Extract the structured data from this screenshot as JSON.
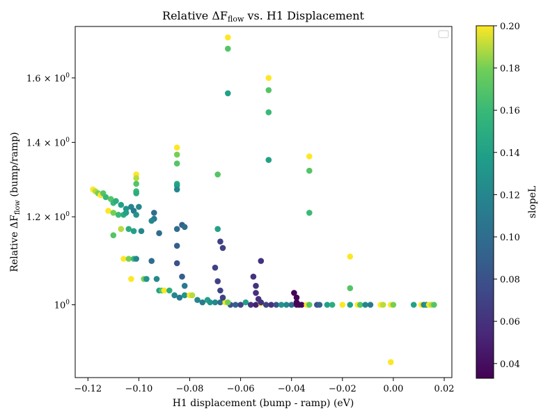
{
  "chart_data": {
    "type": "scatter",
    "title_main": "Relative ΔF",
    "title_sub": "flow",
    "title_rest": " vs. H1 Displacement",
    "xlabel": "H1 displacement (bump - ramp) (eV)",
    "ylabel_main": "Relative ΔF",
    "ylabel_sub": "flow",
    "ylabel_rest": " (bump/ramp)",
    "y_scale": "log",
    "xlim": [
      -0.125,
      0.023
    ],
    "ylim": [
      0.86,
      1.78
    ],
    "x_ticks": [
      {
        "value": -0.12,
        "label": "−0.12"
      },
      {
        "value": -0.1,
        "label": "−0.10"
      },
      {
        "value": -0.08,
        "label": "−0.08"
      },
      {
        "value": -0.06,
        "label": "−0.06"
      },
      {
        "value": -0.04,
        "label": "−0.04"
      },
      {
        "value": -0.02,
        "label": "−0.02"
      },
      {
        "value": 0.0,
        "label": "0.00"
      },
      {
        "value": 0.02,
        "label": "0.02"
      }
    ],
    "y_ticks": [
      {
        "value": 1.0,
        "base": "10",
        "exp": "0",
        "coef": ""
      },
      {
        "value": 1.2,
        "base": "10",
        "exp": "0",
        "coef": "1.2 × "
      },
      {
        "value": 1.4,
        "base": "10",
        "exp": "0",
        "coef": "1.4 × "
      },
      {
        "value": 1.6,
        "base": "10",
        "exp": "0",
        "coef": "1.6 × "
      }
    ],
    "colorbar": {
      "label": "slopeL",
      "range": [
        0.033,
        0.2
      ],
      "ticks": [
        {
          "value": 0.04,
          "label": "0.04"
        },
        {
          "value": 0.06,
          "label": "0.06"
        },
        {
          "value": 0.08,
          "label": "0.08"
        },
        {
          "value": 0.1,
          "label": "0.10"
        },
        {
          "value": 0.12,
          "label": "0.12"
        },
        {
          "value": 0.14,
          "label": "0.14"
        },
        {
          "value": 0.16,
          "label": "0.16"
        },
        {
          "value": 0.18,
          "label": "0.18"
        },
        {
          "value": 0.2,
          "label": "0.20"
        }
      ],
      "colormap": "viridis"
    },
    "legend": "top-right",
    "points": [
      {
        "x": -0.118,
        "y": 1.27,
        "c": 0.2
      },
      {
        "x": -0.117,
        "y": 1.265,
        "c": 0.19
      },
      {
        "x": -0.116,
        "y": 1.26,
        "c": 0.18
      },
      {
        "x": -0.115,
        "y": 1.255,
        "c": 0.2
      },
      {
        "x": -0.114,
        "y": 1.26,
        "c": 0.17
      },
      {
        "x": -0.113,
        "y": 1.25,
        "c": 0.16
      },
      {
        "x": -0.111,
        "y": 1.245,
        "c": 0.17
      },
      {
        "x": -0.11,
        "y": 1.235,
        "c": 0.16
      },
      {
        "x": -0.109,
        "y": 1.24,
        "c": 0.15
      },
      {
        "x": -0.107,
        "y": 1.23,
        "c": 0.14
      },
      {
        "x": -0.105,
        "y": 1.22,
        "c": 0.13
      },
      {
        "x": -0.103,
        "y": 1.225,
        "c": 0.12
      },
      {
        "x": -0.102,
        "y": 1.215,
        "c": 0.11
      },
      {
        "x": -0.101,
        "y": 1.205,
        "c": 0.13
      },
      {
        "x": -0.1,
        "y": 1.225,
        "c": 0.12
      },
      {
        "x": -0.112,
        "y": 1.215,
        "c": 0.2
      },
      {
        "x": -0.11,
        "y": 1.21,
        "c": 0.18
      },
      {
        "x": -0.108,
        "y": 1.205,
        "c": 0.16
      },
      {
        "x": -0.106,
        "y": 1.205,
        "c": 0.15
      },
      {
        "x": -0.105,
        "y": 1.21,
        "c": 0.14
      },
      {
        "x": -0.101,
        "y": 1.31,
        "c": 0.2
      },
      {
        "x": -0.101,
        "y": 1.3,
        "c": 0.19
      },
      {
        "x": -0.101,
        "y": 1.285,
        "c": 0.17
      },
      {
        "x": -0.101,
        "y": 1.265,
        "c": 0.16
      },
      {
        "x": -0.101,
        "y": 1.26,
        "c": 0.15
      },
      {
        "x": -0.107,
        "y": 1.17,
        "c": 0.19
      },
      {
        "x": -0.11,
        "y": 1.155,
        "c": 0.17
      },
      {
        "x": -0.104,
        "y": 1.17,
        "c": 0.15
      },
      {
        "x": -0.102,
        "y": 1.165,
        "c": 0.14
      },
      {
        "x": -0.099,
        "y": 1.165,
        "c": 0.12
      },
      {
        "x": -0.094,
        "y": 1.21,
        "c": 0.1
      },
      {
        "x": -0.094,
        "y": 1.195,
        "c": 0.11
      },
      {
        "x": -0.095,
        "y": 1.19,
        "c": 0.12
      },
      {
        "x": -0.092,
        "y": 1.16,
        "c": 0.1
      },
      {
        "x": -0.106,
        "y": 1.1,
        "c": 0.2
      },
      {
        "x": -0.104,
        "y": 1.1,
        "c": 0.18
      },
      {
        "x": -0.102,
        "y": 1.1,
        "c": 0.16
      },
      {
        "x": -0.101,
        "y": 1.1,
        "c": 0.12
      },
      {
        "x": -0.095,
        "y": 1.095,
        "c": 0.1
      },
      {
        "x": -0.103,
        "y": 1.055,
        "c": 0.2
      },
      {
        "x": -0.098,
        "y": 1.055,
        "c": 0.18
      },
      {
        "x": -0.097,
        "y": 1.055,
        "c": 0.13
      },
      {
        "x": -0.093,
        "y": 1.055,
        "c": 0.12
      },
      {
        "x": -0.092,
        "y": 1.03,
        "c": 0.14
      },
      {
        "x": -0.091,
        "y": 1.03,
        "c": 0.17
      },
      {
        "x": -0.09,
        "y": 1.03,
        "c": 0.2
      },
      {
        "x": -0.088,
        "y": 1.03,
        "c": 0.15
      },
      {
        "x": -0.086,
        "y": 1.02,
        "c": 0.12
      },
      {
        "x": -0.084,
        "y": 1.015,
        "c": 0.11
      },
      {
        "x": -0.082,
        "y": 1.02,
        "c": 0.13
      },
      {
        "x": -0.08,
        "y": 1.02,
        "c": 0.2
      },
      {
        "x": -0.079,
        "y": 1.02,
        "c": 0.19
      },
      {
        "x": -0.077,
        "y": 1.01,
        "c": 0.12
      },
      {
        "x": -0.075,
        "y": 1.005,
        "c": 0.11
      },
      {
        "x": -0.073,
        "y": 1.01,
        "c": 0.14
      },
      {
        "x": -0.072,
        "y": 1.005,
        "c": 0.13
      },
      {
        "x": -0.07,
        "y": 1.005,
        "c": 0.12
      },
      {
        "x": -0.068,
        "y": 1.005,
        "c": 0.1
      },
      {
        "x": -0.066,
        "y": 1.005,
        "c": 0.2
      },
      {
        "x": -0.064,
        "y": 1.0,
        "c": 0.08
      },
      {
        "x": -0.062,
        "y": 1.0,
        "c": 0.09
      },
      {
        "x": -0.06,
        "y": 1.0,
        "c": 0.07
      },
      {
        "x": -0.058,
        "y": 1.005,
        "c": 0.14
      },
      {
        "x": -0.056,
        "y": 1.0,
        "c": 0.06
      },
      {
        "x": -0.054,
        "y": 1.0,
        "c": 0.05
      },
      {
        "x": -0.052,
        "y": 1.003,
        "c": 0.2
      },
      {
        "x": -0.05,
        "y": 1.0,
        "c": 0.07
      },
      {
        "x": -0.048,
        "y": 1.0,
        "c": 0.06
      },
      {
        "x": -0.046,
        "y": 1.0,
        "c": 0.08
      },
      {
        "x": -0.044,
        "y": 1.0,
        "c": 0.13
      },
      {
        "x": -0.042,
        "y": 1.0,
        "c": 0.12
      },
      {
        "x": -0.04,
        "y": 1.0,
        "c": 0.1
      },
      {
        "x": -0.038,
        "y": 1.0,
        "c": 0.04
      },
      {
        "x": -0.036,
        "y": 1.0,
        "c": 0.035
      },
      {
        "x": -0.034,
        "y": 1.0,
        "c": 0.2
      },
      {
        "x": -0.033,
        "y": 1.0,
        "c": 0.17
      },
      {
        "x": -0.03,
        "y": 1.0,
        "c": 0.08
      },
      {
        "x": -0.029,
        "y": 1.0,
        "c": 0.09
      },
      {
        "x": -0.026,
        "y": 1.0,
        "c": 0.14
      },
      {
        "x": -0.024,
        "y": 1.0,
        "c": 0.15
      },
      {
        "x": -0.02,
        "y": 1.0,
        "c": 0.2
      },
      {
        "x": -0.017,
        "y": 1.0,
        "c": 0.14
      },
      {
        "x": -0.014,
        "y": 1.0,
        "c": 0.2
      },
      {
        "x": -0.013,
        "y": 1.0,
        "c": 0.17
      },
      {
        "x": -0.011,
        "y": 1.0,
        "c": 0.12
      },
      {
        "x": -0.009,
        "y": 1.0,
        "c": 0.11
      },
      {
        "x": -0.005,
        "y": 1.0,
        "c": 0.2
      },
      {
        "x": -0.004,
        "y": 1.0,
        "c": 0.19
      },
      {
        "x": -0.001,
        "y": 1.0,
        "c": 0.2
      },
      {
        "x": 0.0,
        "y": 1.0,
        "c": 0.18
      },
      {
        "x": 0.008,
        "y": 1.0,
        "c": 0.14
      },
      {
        "x": 0.011,
        "y": 1.0,
        "c": 0.2
      },
      {
        "x": 0.012,
        "y": 1.0,
        "c": 0.12
      },
      {
        "x": 0.013,
        "y": 1.0,
        "c": 0.13
      },
      {
        "x": 0.014,
        "y": 1.0,
        "c": 0.2
      },
      {
        "x": 0.015,
        "y": 1.0,
        "c": 0.19
      },
      {
        "x": 0.016,
        "y": 1.0,
        "c": 0.17
      },
      {
        "x": -0.085,
        "y": 1.385,
        "c": 0.2
      },
      {
        "x": -0.085,
        "y": 1.365,
        "c": 0.18
      },
      {
        "x": -0.085,
        "y": 1.34,
        "c": 0.17
      },
      {
        "x": -0.085,
        "y": 1.285,
        "c": 0.15
      },
      {
        "x": -0.085,
        "y": 1.28,
        "c": 0.14
      },
      {
        "x": -0.085,
        "y": 1.27,
        "c": 0.12
      },
      {
        "x": -0.085,
        "y": 1.17,
        "c": 0.1
      },
      {
        "x": -0.085,
        "y": 1.13,
        "c": 0.09
      },
      {
        "x": -0.085,
        "y": 1.09,
        "c": 0.08
      },
      {
        "x": -0.083,
        "y": 1.06,
        "c": 0.09
      },
      {
        "x": -0.082,
        "y": 1.04,
        "c": 0.11
      },
      {
        "x": -0.083,
        "y": 1.18,
        "c": 0.09
      },
      {
        "x": -0.082,
        "y": 1.175,
        "c": 0.1
      },
      {
        "x": -0.069,
        "y": 1.31,
        "c": 0.17
      },
      {
        "x": -0.069,
        "y": 1.17,
        "c": 0.14
      },
      {
        "x": -0.068,
        "y": 1.14,
        "c": 0.07
      },
      {
        "x": -0.067,
        "y": 1.125,
        "c": 0.07
      },
      {
        "x": -0.07,
        "y": 1.08,
        "c": 0.07
      },
      {
        "x": -0.069,
        "y": 1.05,
        "c": 0.07
      },
      {
        "x": -0.068,
        "y": 1.03,
        "c": 0.07
      },
      {
        "x": -0.067,
        "y": 1.015,
        "c": 0.07
      },
      {
        "x": -0.065,
        "y": 1.005,
        "c": 0.18
      },
      {
        "x": -0.065,
        "y": 1.74,
        "c": 0.2
      },
      {
        "x": -0.065,
        "y": 1.7,
        "c": 0.17
      },
      {
        "x": -0.065,
        "y": 1.55,
        "c": 0.14
      },
      {
        "x": -0.049,
        "y": 1.6,
        "c": 0.2
      },
      {
        "x": -0.049,
        "y": 1.56,
        "c": 0.17
      },
      {
        "x": -0.049,
        "y": 1.49,
        "c": 0.16
      },
      {
        "x": -0.049,
        "y": 1.35,
        "c": 0.14
      },
      {
        "x": -0.052,
        "y": 1.095,
        "c": 0.06
      },
      {
        "x": -0.055,
        "y": 1.06,
        "c": 0.06
      },
      {
        "x": -0.054,
        "y": 1.04,
        "c": 0.06
      },
      {
        "x": -0.054,
        "y": 1.025,
        "c": 0.06
      },
      {
        "x": -0.053,
        "y": 1.012,
        "c": 0.06
      },
      {
        "x": -0.052,
        "y": 1.005,
        "c": 0.06
      },
      {
        "x": -0.039,
        "y": 1.025,
        "c": 0.035
      },
      {
        "x": -0.038,
        "y": 1.015,
        "c": 0.035
      },
      {
        "x": -0.038,
        "y": 1.005,
        "c": 0.035
      },
      {
        "x": -0.037,
        "y": 1.0,
        "c": 0.035
      },
      {
        "x": -0.033,
        "y": 1.36,
        "c": 0.2
      },
      {
        "x": -0.033,
        "y": 1.32,
        "c": 0.17
      },
      {
        "x": -0.033,
        "y": 1.21,
        "c": 0.16
      },
      {
        "x": -0.017,
        "y": 1.105,
        "c": 0.2
      },
      {
        "x": -0.017,
        "y": 1.035,
        "c": 0.17
      },
      {
        "x": -0.001,
        "y": 0.888,
        "c": 0.2
      }
    ]
  }
}
